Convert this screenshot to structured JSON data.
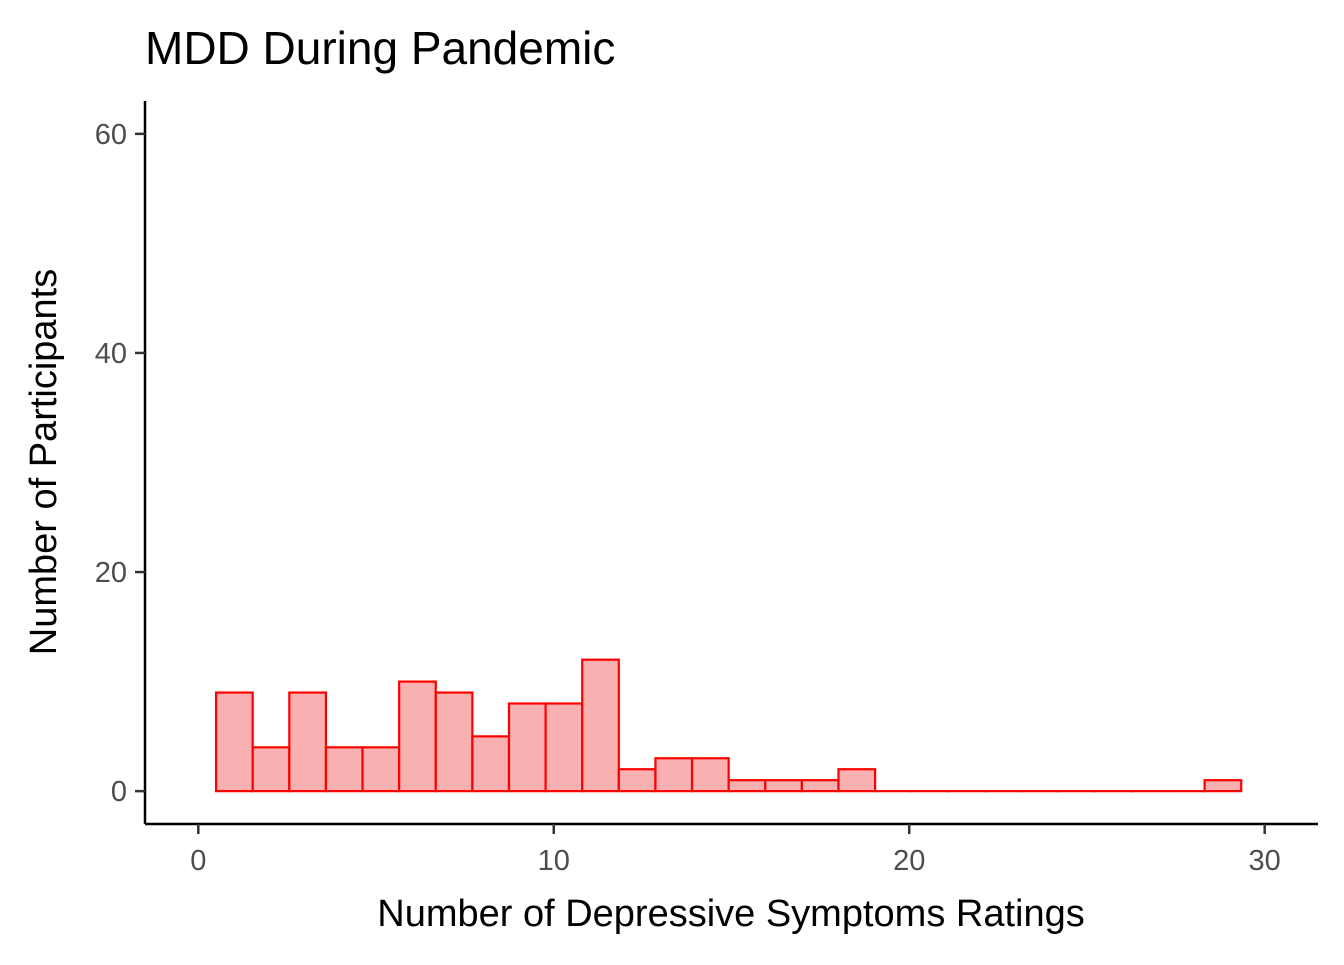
{
  "chart_data": {
    "type": "histogram",
    "title": "MDD During Pandemic",
    "xlabel": "Number of Depressive Symptoms Ratings",
    "ylabel": "Number of Participants",
    "xlim": [
      -1.5,
      31.5
    ],
    "ylim": [
      -3,
      63
    ],
    "x_ticks": [
      0,
      10,
      20,
      30
    ],
    "y_ticks": [
      0,
      20,
      40,
      60
    ],
    "grid": false,
    "legend": "none",
    "bin_width": 1.03,
    "bins": [
      {
        "x0": 0.5,
        "x1": 1.53,
        "count": 9
      },
      {
        "x0": 1.53,
        "x1": 2.56,
        "count": 4
      },
      {
        "x0": 2.56,
        "x1": 3.59,
        "count": 9
      },
      {
        "x0": 3.59,
        "x1": 4.62,
        "count": 4
      },
      {
        "x0": 4.62,
        "x1": 5.65,
        "count": 4
      },
      {
        "x0": 5.65,
        "x1": 6.68,
        "count": 10
      },
      {
        "x0": 6.68,
        "x1": 7.71,
        "count": 9
      },
      {
        "x0": 7.71,
        "x1": 8.74,
        "count": 5
      },
      {
        "x0": 8.74,
        "x1": 9.77,
        "count": 8
      },
      {
        "x0": 9.77,
        "x1": 10.8,
        "count": 8
      },
      {
        "x0": 10.8,
        "x1": 11.83,
        "count": 12
      },
      {
        "x0": 11.83,
        "x1": 12.86,
        "count": 2
      },
      {
        "x0": 12.86,
        "x1": 13.89,
        "count": 3
      },
      {
        "x0": 13.89,
        "x1": 14.92,
        "count": 3
      },
      {
        "x0": 14.92,
        "x1": 15.95,
        "count": 1
      },
      {
        "x0": 15.95,
        "x1": 16.98,
        "count": 1
      },
      {
        "x0": 16.98,
        "x1": 18.01,
        "count": 1
      },
      {
        "x0": 18.01,
        "x1": 19.04,
        "count": 2
      },
      {
        "x0": 19.04,
        "x1": 20.07,
        "count": 0
      },
      {
        "x0": 20.07,
        "x1": 21.1,
        "count": 0
      },
      {
        "x0": 21.1,
        "x1": 22.13,
        "count": 0
      },
      {
        "x0": 22.13,
        "x1": 23.16,
        "count": 0
      },
      {
        "x0": 23.16,
        "x1": 24.19,
        "count": 0
      },
      {
        "x0": 24.19,
        "x1": 25.22,
        "count": 0
      },
      {
        "x0": 25.22,
        "x1": 26.25,
        "count": 0
      },
      {
        "x0": 26.25,
        "x1": 27.28,
        "count": 0
      },
      {
        "x0": 27.28,
        "x1": 28.31,
        "count": 0
      },
      {
        "x0": 28.31,
        "x1": 29.34,
        "count": 1
      }
    ],
    "colors": {
      "bar_fill": "#f8b0b0",
      "bar_stroke": "#ff0000"
    }
  }
}
